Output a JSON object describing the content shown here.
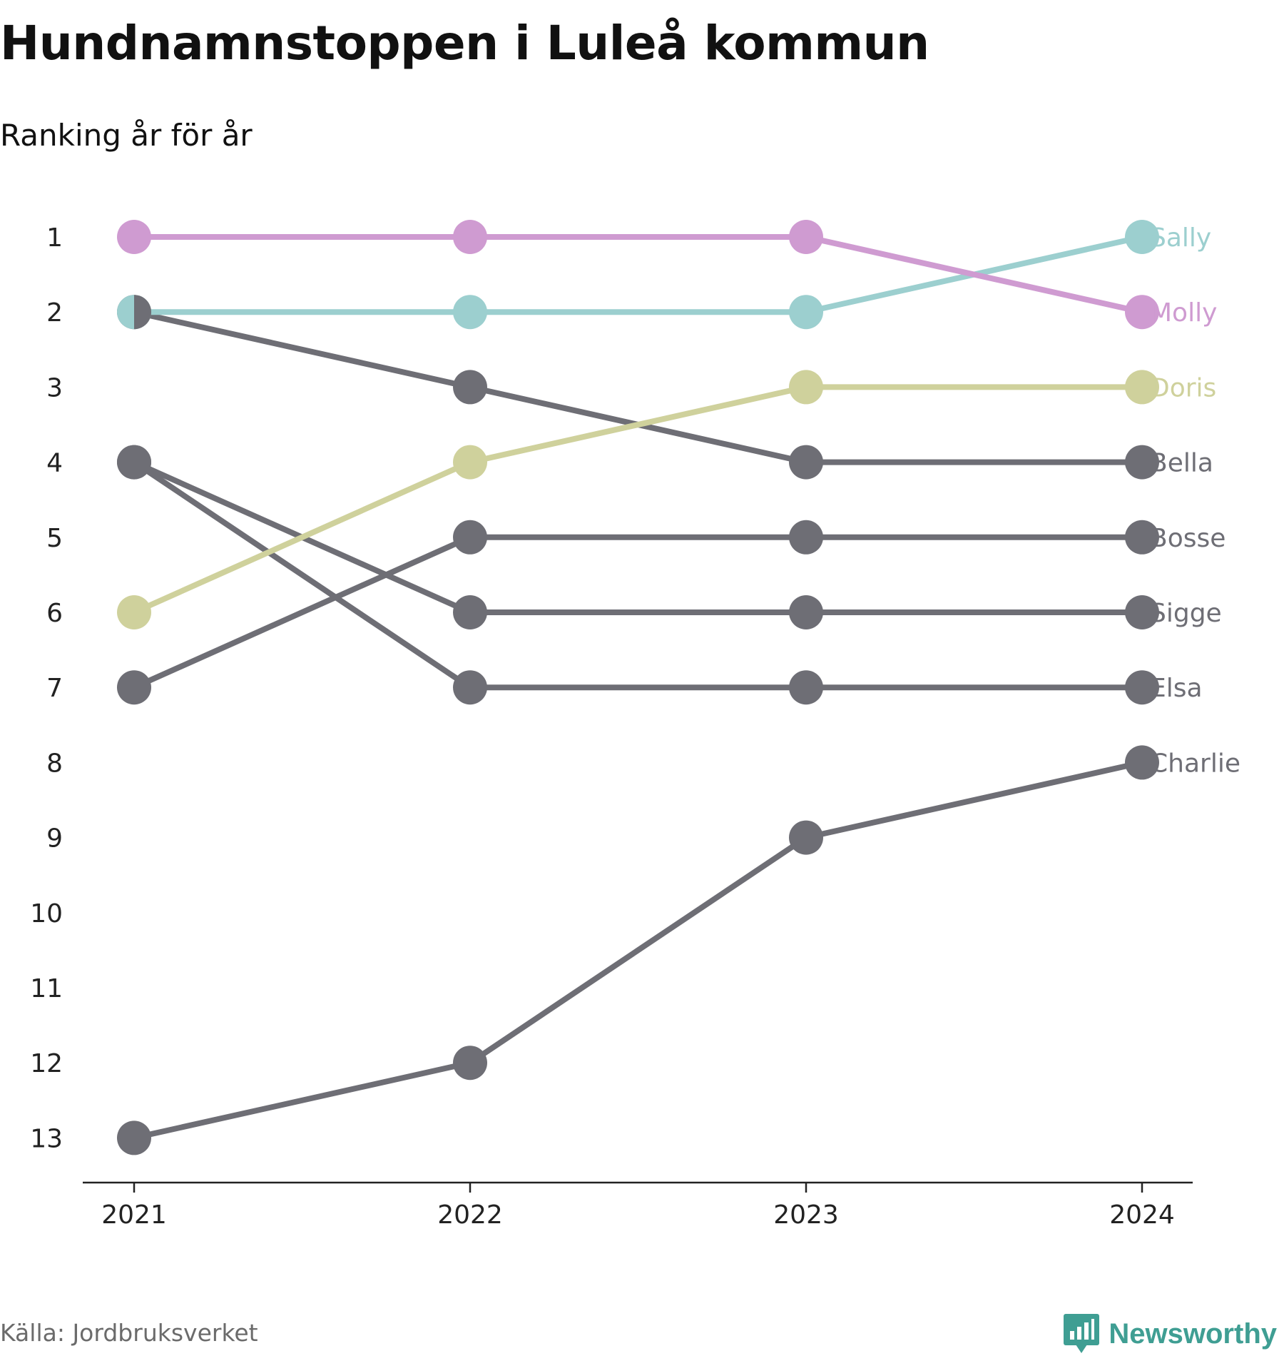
{
  "header": {
    "title": "Hundnamnstoppen i Luleå kommun",
    "subtitle": "Ranking år för år"
  },
  "footer": {
    "source": "Källa: Jordbruksverket",
    "brand": "Newsworthy",
    "brand_icon": "bar-chart-speech-icon",
    "brand_color": "#3f9e93"
  },
  "chart_data": {
    "type": "line",
    "x": [
      "2021",
      "2022",
      "2023",
      "2024"
    ],
    "y_ticks": [
      1,
      2,
      3,
      4,
      5,
      6,
      7,
      8,
      9,
      10,
      11,
      12,
      13
    ],
    "ylim": [
      13,
      1
    ],
    "y_inverted": true,
    "grid": false,
    "series": [
      {
        "name": "Sally",
        "values": [
          2,
          2,
          2,
          1
        ],
        "color": "#9ccfcf"
      },
      {
        "name": "Molly",
        "values": [
          1,
          1,
          1,
          2
        ],
        "color": "#cf9bd1"
      },
      {
        "name": "Doris",
        "values": [
          6,
          4,
          3,
          3
        ],
        "color": "#cfd19c"
      },
      {
        "name": "Bella",
        "values": [
          2,
          3,
          4,
          4
        ],
        "color": "#6e6e75"
      },
      {
        "name": "Bosse",
        "values": [
          7,
          5,
          5,
          5
        ],
        "color": "#6e6e75"
      },
      {
        "name": "Sigge",
        "values": [
          4,
          6,
          6,
          6
        ],
        "color": "#6e6e75"
      },
      {
        "name": "Elsa",
        "values": [
          4,
          7,
          7,
          7
        ],
        "color": "#6e6e75"
      },
      {
        "name": "Charlie",
        "values": [
          13,
          12,
          9,
          8
        ],
        "color": "#6e6e75"
      }
    ]
  }
}
